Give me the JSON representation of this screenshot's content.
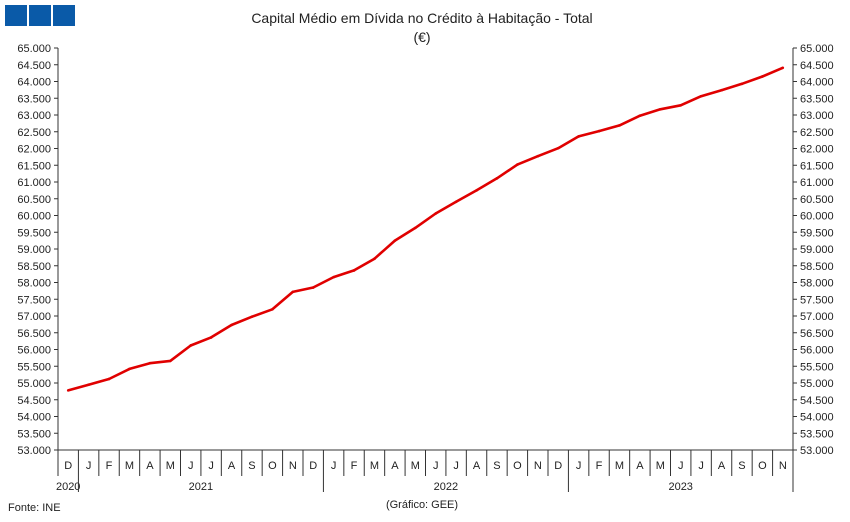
{
  "logo": {
    "label": "GEE logo",
    "squares": 3,
    "color": "#0a5aa8"
  },
  "chart_data": {
    "type": "line",
    "title": "Capital Médio em Dívida no Crédito à Habitação - Total",
    "subtitle": "(€)",
    "source": "Fonte: INE",
    "credit": "(Gráfico: GEE)",
    "ylim": [
      53000,
      65000
    ],
    "ytick_step": 500,
    "ytick_labels": [
      "53.000",
      "53.500",
      "54.000",
      "54.500",
      "55.000",
      "55.500",
      "56.000",
      "56.500",
      "57.000",
      "57.500",
      "58.000",
      "58.500",
      "59.000",
      "59.500",
      "60.000",
      "60.500",
      "61.000",
      "61.500",
      "62.000",
      "62.500",
      "63.000",
      "63.500",
      "64.000",
      "64.500",
      "65.000"
    ],
    "grid": false,
    "legend": "none",
    "line_color": "#e00000",
    "x": [
      "D",
      "J",
      "F",
      "M",
      "A",
      "M",
      "J",
      "J",
      "A",
      "S",
      "O",
      "N",
      "D",
      "J",
      "F",
      "M",
      "A",
      "M",
      "J",
      "J",
      "A",
      "S",
      "O",
      "N",
      "D",
      "J",
      "F",
      "M",
      "A",
      "M",
      "J",
      "J",
      "A",
      "S",
      "O",
      "N"
    ],
    "years": [
      {
        "label": "2020",
        "start": 0,
        "count": 1
      },
      {
        "label": "2021",
        "start": 1,
        "count": 12
      },
      {
        "label": "2022",
        "start": 13,
        "count": 12
      },
      {
        "label": "2023",
        "start": 25,
        "count": 11
      }
    ],
    "series": [
      {
        "values": [
          54780,
          54950,
          55120,
          55420,
          55590,
          55660,
          56120,
          56360,
          56730,
          56980,
          57200,
          57720,
          57850,
          58160,
          58360,
          58710,
          59250,
          59630,
          60060,
          60410,
          60750,
          61110,
          61520,
          61770,
          62010,
          62360,
          62520,
          62690,
          62980,
          63170,
          63290,
          63560,
          63740,
          63930,
          64150,
          64410
        ]
      }
    ]
  }
}
